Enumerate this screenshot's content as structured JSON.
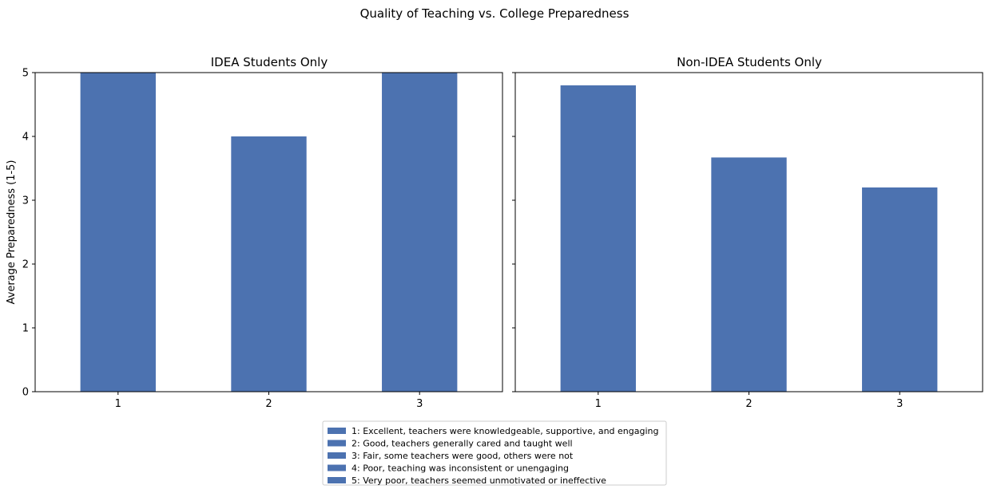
{
  "chart_data": {
    "type": "bar",
    "title": "Quality of Teaching vs. College Preparedness",
    "ylabel": "Average Preparedness (1-5)",
    "ylim": [
      0,
      5
    ],
    "yticks": [
      "0",
      "1",
      "2",
      "3",
      "4",
      "5"
    ],
    "grid": false,
    "legend_placement": "bottom-center",
    "bar_color": "#4c72b0",
    "panels": [
      {
        "title": "IDEA Students Only",
        "categories": [
          "1",
          "2",
          "3"
        ],
        "values": [
          5.0,
          4.0,
          5.0
        ]
      },
      {
        "title": "Non-IDEA Students Only",
        "categories": [
          "1",
          "2",
          "3"
        ],
        "values": [
          4.8,
          3.67,
          3.2
        ]
      }
    ],
    "legend": [
      "1: Excellent, teachers were knowledgeable, supportive, and engaging",
      "2: Good, teachers generally cared and taught well",
      "3: Fair, some teachers were good, others were not",
      "4: Poor, teaching was inconsistent or unengaging",
      "5: Very poor, teachers seemed unmotivated or ineffective"
    ]
  }
}
